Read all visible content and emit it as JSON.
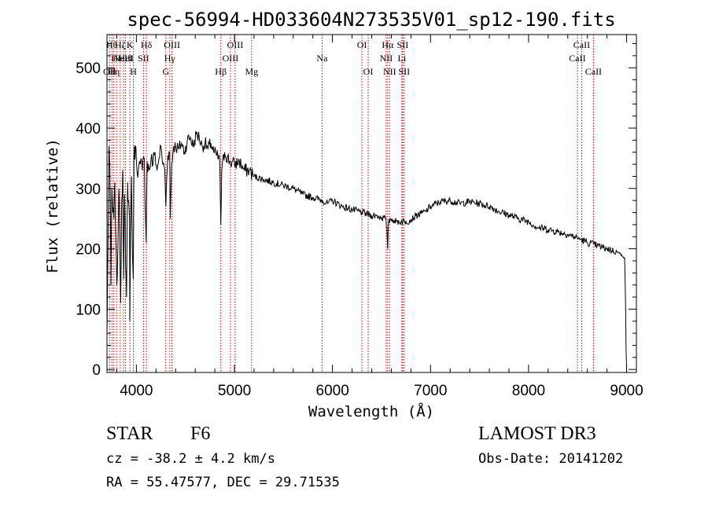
{
  "chart_data": {
    "type": "line",
    "title": "spec-56994-HD033604N273535V01_sp12-190.fits",
    "xlabel": "Wavelength (Å)",
    "ylabel": "Flux (relative)",
    "xlim": [
      3700,
      9100
    ],
    "ylim": [
      -5,
      555
    ],
    "xticks": [
      4000,
      5000,
      6000,
      7000,
      8000,
      9000
    ],
    "yticks": [
      0,
      100,
      200,
      300,
      400,
      500
    ],
    "series": [
      {
        "name": "flux",
        "x": [
          3700,
          3710,
          3720,
          3730,
          3740,
          3750,
          3760,
          3770,
          3780,
          3790,
          3800,
          3810,
          3820,
          3830,
          3840,
          3850,
          3860,
          3870,
          3880,
          3890,
          3900,
          3910,
          3920,
          3930,
          3933,
          3940,
          3950,
          3960,
          3968,
          3975,
          3990,
          4000,
          4020,
          4040,
          4060,
          4080,
          4100,
          4102,
          4110,
          4130,
          4150,
          4170,
          4190,
          4210,
          4230,
          4250,
          4270,
          4290,
          4300,
          4310,
          4320,
          4340,
          4345,
          4360,
          4380,
          4400,
          4430,
          4460,
          4490,
          4520,
          4550,
          4580,
          4610,
          4640,
          4670,
          4700,
          4730,
          4760,
          4790,
          4820,
          4850,
          4861,
          4870,
          4900,
          4950,
          5000,
          5050,
          5100,
          5150,
          5200,
          5300,
          5400,
          5500,
          5600,
          5700,
          5800,
          5900,
          5950,
          6000,
          6100,
          6200,
          6300,
          6400,
          6450,
          6500,
          6540,
          6555,
          6563,
          6570,
          6590,
          6620,
          6650,
          6700,
          6750,
          6800,
          6850,
          6900,
          6950,
          7000,
          7100,
          7200,
          7300,
          7400,
          7500,
          7600,
          7700,
          7800,
          7900,
          8000,
          8100,
          8200,
          8300,
          8400,
          8498,
          8542,
          8600,
          8662,
          8700,
          8800,
          8900,
          8950,
          8980,
          8990,
          8995,
          9000
        ],
        "y": [
          60,
          200,
          370,
          330,
          140,
          300,
          260,
          250,
          310,
          210,
          140,
          190,
          300,
          230,
          110,
          280,
          330,
          150,
          290,
          170,
          120,
          310,
          280,
          250,
          80,
          220,
          320,
          190,
          150,
          350,
          370,
          345,
          330,
          340,
          330,
          350,
          210,
          250,
          345,
          330,
          350,
          340,
          360,
          330,
          350,
          370,
          340,
          330,
          270,
          320,
          355,
          360,
          250,
          340,
          370,
          370,
          365,
          375,
          360,
          380,
          385,
          370,
          390,
          385,
          370,
          375,
          365,
          375,
          360,
          355,
          345,
          240,
          330,
          360,
          345,
          340,
          345,
          330,
          330,
          320,
          315,
          310,
          305,
          300,
          290,
          285,
          280,
          275,
          280,
          270,
          265,
          260,
          255,
          255,
          252,
          250,
          235,
          200,
          240,
          250,
          248,
          245,
          245,
          245,
          248,
          255,
          258,
          262,
          270,
          278,
          280,
          275,
          278,
          275,
          270,
          262,
          256,
          250,
          245,
          235,
          232,
          228,
          224,
          218,
          215,
          210,
          208,
          205,
          200,
          195,
          190,
          185,
          100,
          30,
          5
        ]
      }
    ],
    "lines": [
      {
        "wave": 3727,
        "label": "OII",
        "row": 2
      },
      {
        "wave": 3750,
        "label": "Hθ",
        "row": 0
      },
      {
        "wave": 3770,
        "label": "Hη",
        "row": 2
      },
      {
        "wave": 3798,
        "label": "Hε",
        "row": 1
      },
      {
        "wave": 3835,
        "label": "Hζ",
        "row": 0
      },
      {
        "wave": 3869,
        "label": "NeIII",
        "row": 1
      },
      {
        "wave": 3889,
        "label": "HeI",
        "row": 1
      },
      {
        "wave": 3934,
        "label": "K",
        "row": 0
      },
      {
        "wave": 3969,
        "label": "H",
        "row": 2
      },
      {
        "wave": 4072,
        "label": "SII",
        "row": 1
      },
      {
        "wave": 4102,
        "label": "Hδ",
        "row": 0
      },
      {
        "wave": 4300,
        "label": "G",
        "row": 2
      },
      {
        "wave": 4340,
        "label": "Hγ",
        "row": 1
      },
      {
        "wave": 4363,
        "label": "OIII",
        "row": 0
      },
      {
        "wave": 4861,
        "label": "Hβ",
        "row": 2
      },
      {
        "wave": 4959,
        "label": "OIII",
        "row": 1
      },
      {
        "wave": 5007,
        "label": "OIII",
        "row": 0
      },
      {
        "wave": 5175,
        "label": "Mg",
        "row": 2
      },
      {
        "wave": 5894,
        "label": "Na",
        "row": 1
      },
      {
        "wave": 6300,
        "label": "OI",
        "row": 0
      },
      {
        "wave": 6364,
        "label": "OI",
        "row": 2
      },
      {
        "wave": 6548,
        "label": "NII",
        "row": 1
      },
      {
        "wave": 6563,
        "label": "Hα",
        "row": 0
      },
      {
        "wave": 6583,
        "label": "NII",
        "row": 2
      },
      {
        "wave": 6708,
        "label": "Li",
        "row": 1
      },
      {
        "wave": 6716,
        "label": "SII",
        "row": 0
      },
      {
        "wave": 6731,
        "label": "SII",
        "row": 2
      },
      {
        "wave": 8498,
        "label": "CaII",
        "row": 1
      },
      {
        "wave": 8542,
        "label": "CaII",
        "row": 0
      },
      {
        "wave": 8662,
        "label": "CaII",
        "row": 2
      }
    ],
    "line_color": "#cc0000"
  },
  "info": {
    "object_class": "STAR",
    "subclass": "F6",
    "survey": "LAMOST DR3",
    "redshift": "cz = -38.2 ± 4.2 km/s",
    "obs_date": "Obs-Date: 20141202",
    "coords": "RA =  55.47577, DEC =  29.71535"
  }
}
